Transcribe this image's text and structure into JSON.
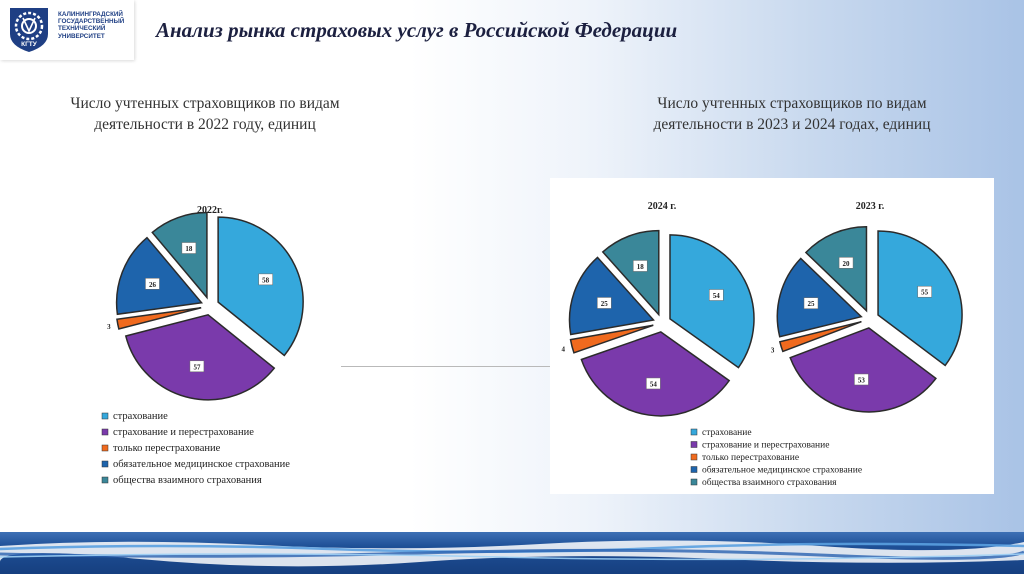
{
  "logo": {
    "emblem_text": "КГТУ",
    "lines": [
      "КАЛИНИНГРАДСКИЙ",
      "ГОСУДАРСТВЕННЫЙ",
      "ТЕХНИЧЕСКИЙ",
      "УНИВЕРСИТЕТ"
    ]
  },
  "title": "Анализ рынка страховых услуг в Российской Федерации",
  "captions": {
    "left": "Число учтенных страховщиков по видам деятельности в 2022 году, единиц",
    "right": "Число учтенных страховщиков по видам деятельности в 2023 и 2024 годах, единиц"
  },
  "colors": {
    "страхование": "#35a8dc",
    "страхование и перестрахование": "#7a3aab",
    "только перестрахование": "#f06a1e",
    "обязательное медицинское страхование": "#1e64ac",
    "общества взаимного страхования": "#3a8799",
    "footer": "#1e4f96",
    "background_right": "#a9c3e6"
  },
  "chart_data": [
    {
      "type": "pie",
      "title": "2022г.",
      "categories": [
        "страхование",
        "страхование и перестрахование",
        "только перестрахование",
        "обязательное медицинское страхование",
        "общества взаимного страхования"
      ],
      "values": [
        58,
        57,
        3,
        26,
        18
      ],
      "legend": "bottom"
    },
    {
      "type": "pie",
      "title": "2024 г.",
      "categories": [
        "страхование",
        "страхование и перестрахование",
        "только перестрахование",
        "обязательное медицинское страхование",
        "общества взаимного страхования"
      ],
      "values": [
        54,
        54,
        4,
        25,
        18
      ],
      "legend": "bottom"
    },
    {
      "type": "pie",
      "title": "2023 г.",
      "categories": [
        "страхование",
        "страхование и перестрахование",
        "только перестрахование",
        "обязательное медицинское страхование",
        "общества взаимного страхования"
      ],
      "values": [
        55,
        53,
        3,
        25,
        20
      ],
      "legend": "bottom"
    }
  ]
}
